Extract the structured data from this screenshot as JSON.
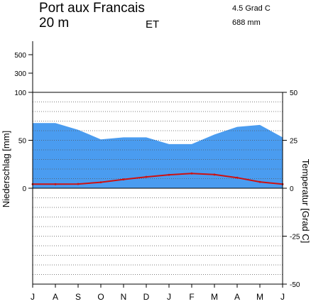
{
  "chart_data": {
    "type": "climate-diagram",
    "station": "Port aux Francais",
    "elevation": "20 m",
    "climate_class": "ET",
    "mean_temperature": "4.5 Grad C",
    "annual_precipitation": "688 mm",
    "ylabel_left": "Niederschlag [mm]",
    "ylabel_right": "Temperatur [Grad C]",
    "months": [
      "J",
      "A",
      "S",
      "O",
      "N",
      "D",
      "J",
      "F",
      "M",
      "A",
      "M",
      "J"
    ],
    "precip_upper_ticks": [
      "500",
      "300"
    ],
    "precip_ticks": [
      "100",
      "50",
      "0"
    ],
    "temp_ticks": [
      "50",
      "25",
      "0",
      "-25",
      "-50"
    ],
    "precip_ylim": [
      0,
      100
    ],
    "temp_ylim": [
      -50,
      50
    ],
    "precipitation_mm": [
      68,
      68,
      61,
      51,
      53,
      53,
      46,
      46,
      56,
      64,
      66,
      53
    ],
    "temperature_c": [
      2.1,
      2.1,
      2.2,
      3.1,
      4.6,
      5.9,
      7.0,
      7.7,
      7.1,
      5.5,
      3.3,
      2.1
    ],
    "colors": {
      "precipitation_fill": "#4a9cf0",
      "temperature_line": "#cc1111",
      "grid": "#555555"
    }
  }
}
